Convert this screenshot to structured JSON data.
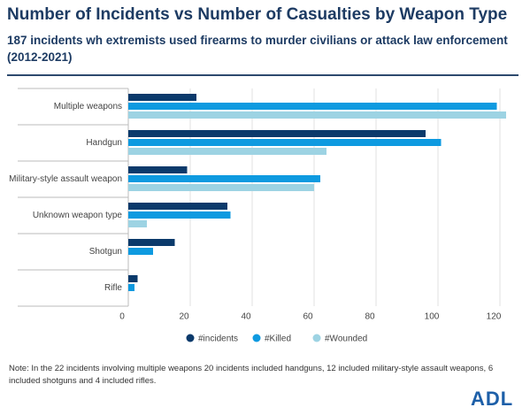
{
  "chart_data": {
    "type": "hbar",
    "title": "Number of Incidents vs Number of Casualties by Weapon Type",
    "subtitle": "187 incidents wh extremists used firearms to murder civilians or attack law enforcement (2012-2021)",
    "categories": [
      "Multiple weapons",
      "Handgun",
      "Military-style assault weapon",
      "Unknown weapon type",
      "Shotgun",
      "Rifle"
    ],
    "series": [
      {
        "name": "#incidents",
        "color": "#0b3a6b",
        "values": [
          22,
          96,
          19,
          32,
          15,
          3
        ]
      },
      {
        "name": "#Killed",
        "color": "#0e9ae0",
        "values": [
          119,
          101,
          62,
          33,
          8,
          2
        ]
      },
      {
        "name": "#Wounded",
        "color": "#9dd3e3",
        "values": [
          122,
          64,
          60,
          6,
          0,
          0
        ]
      }
    ],
    "xlim": [
      0,
      126
    ],
    "xticks": [
      0,
      20,
      40,
      60,
      80,
      100,
      120
    ],
    "grid": true,
    "note": "Note: In the 22 incidents involving multiple weapons 20 incidents included handguns, 12 included military-style assault weapons, 6 included shotguns and 4 included rifles.",
    "logo": "ADL"
  }
}
